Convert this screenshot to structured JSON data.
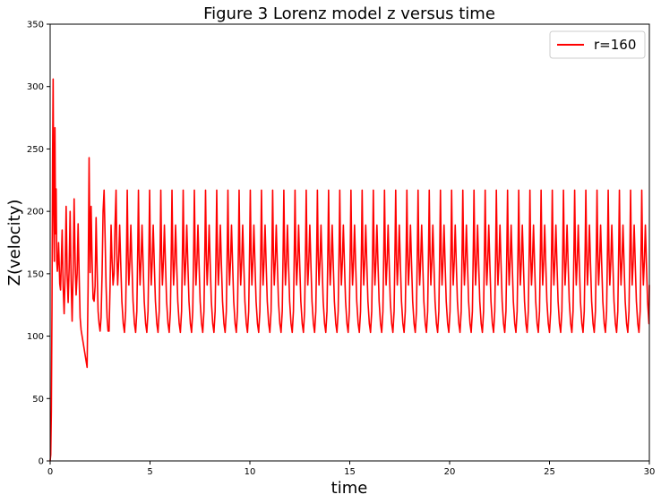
{
  "chart_data": {
    "type": "line",
    "title": "Figure 3 Lorenz model  z versus time",
    "xlabel": "time",
    "ylabel": "Z(velocity)",
    "xlim": [
      0,
      30
    ],
    "ylim": [
      0,
      350
    ],
    "xticks": [
      0,
      5,
      10,
      15,
      20,
      25,
      30
    ],
    "yticks": [
      0,
      50,
      100,
      150,
      200,
      250,
      300,
      350
    ],
    "grid": false,
    "legend_position": "top-right",
    "series": [
      {
        "name": "r=160",
        "color": "#ff0000",
        "x": [
          0,
          0.03,
          0.06,
          0.09,
          0.12,
          0.15,
          0.18,
          0.21,
          0.24,
          0.27,
          0.3,
          0.33,
          0.36,
          0.39,
          0.42,
          0.45,
          0.48,
          0.52,
          0.56,
          0.6,
          0.65,
          0.7,
          0.75,
          0.8,
          0.85,
          0.9,
          0.95,
          1.0,
          1.05,
          1.1,
          1.15,
          1.2,
          1.25,
          1.3,
          1.35,
          1.4,
          1.45,
          1.5,
          1.55,
          1.6,
          1.65,
          1.7,
          1.75,
          1.8,
          1.85,
          1.9,
          1.95,
          2.0,
          2.05,
          2.1,
          2.15,
          2.2,
          2.25,
          2.3,
          2.35,
          2.4,
          2.45,
          2.5,
          2.55,
          2.6,
          2.65,
          2.7,
          2.75,
          2.8,
          2.85,
          2.9,
          2.95,
          3.0,
          3.05,
          3.1,
          3.15,
          3.2,
          3.25,
          3.3
        ],
        "y": [
          0,
          5,
          40,
          120,
          240,
          306,
          200,
          160,
          267,
          182,
          218,
          160,
          152,
          160,
          175,
          160,
          142,
          137,
          160,
          185,
          140,
          118,
          150,
          204,
          150,
          127,
          155,
          200,
          145,
          112,
          150,
          210,
          160,
          133,
          150,
          190,
          150,
          115,
          105,
          100,
          95,
          90,
          85,
          80,
          75,
          140,
          243,
          151,
          204,
          160,
          130,
          128,
          140,
          195,
          155,
          120,
          110,
          104,
          115,
          150,
          200,
          217,
          180,
          140,
          115,
          104,
          104,
          140,
          189,
          160,
          141,
          150,
          190,
          217
        ],
        "periodic": {
          "start": 3.3,
          "period": 0.56,
          "cycle": [
            [
              0.0,
              217
            ],
            [
              0.04,
              165
            ],
            [
              0.08,
              141
            ],
            [
              0.13,
              160
            ],
            [
              0.18,
              189
            ],
            [
              0.23,
              160
            ],
            [
              0.29,
              128
            ],
            [
              0.36,
              110
            ],
            [
              0.42,
              103
            ],
            [
              0.48,
              120
            ],
            [
              0.53,
              175
            ],
            [
              0.56,
              217
            ]
          ]
        }
      }
    ]
  }
}
